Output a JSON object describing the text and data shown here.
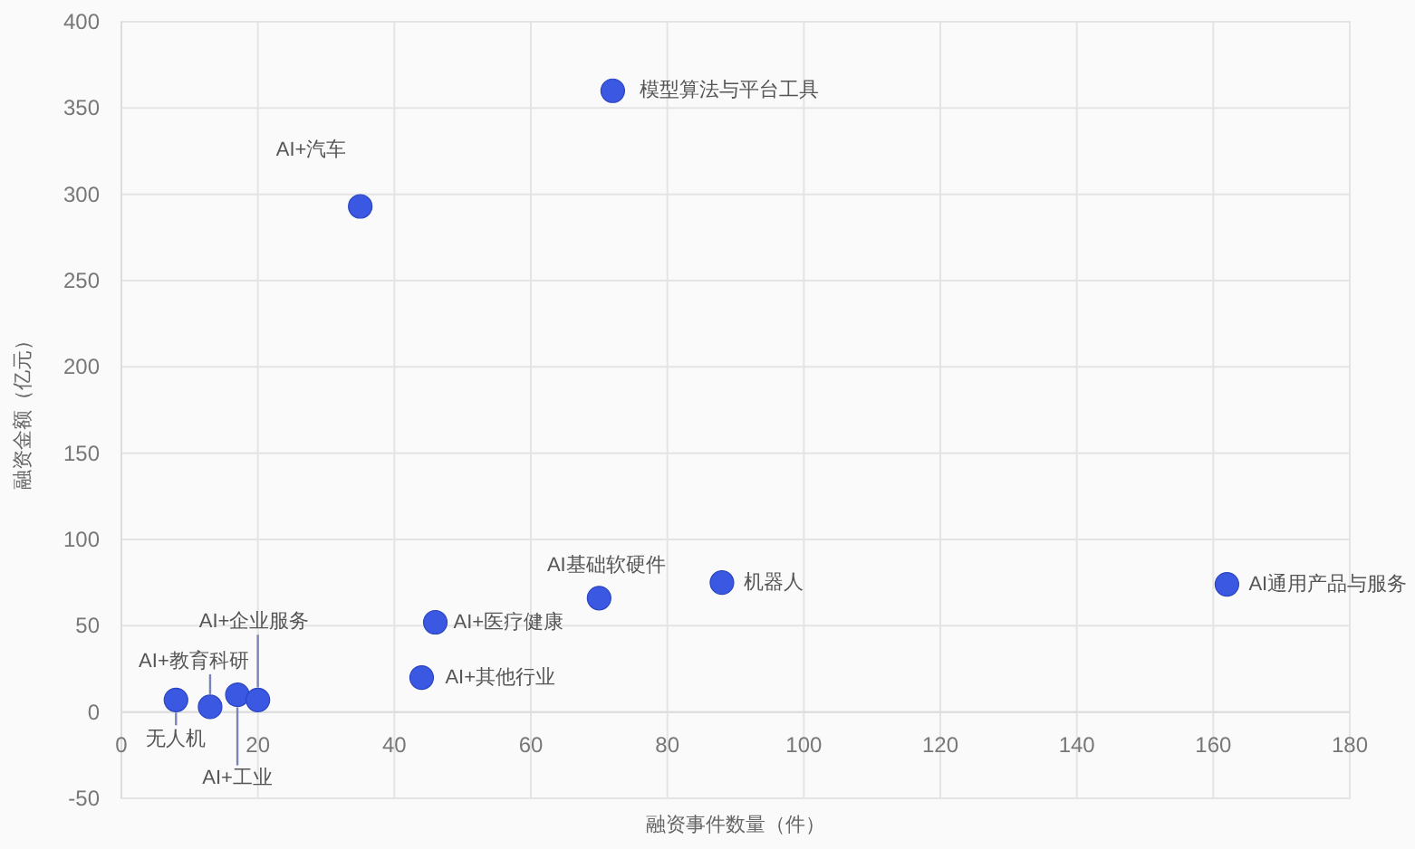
{
  "chart_data": {
    "type": "scatter",
    "xlabel": "融资事件数量（件）",
    "ylabel": "融资金额（亿元）",
    "x": [
      72,
      35,
      70,
      88,
      162,
      46,
      44,
      8,
      13,
      17,
      20
    ],
    "values": [
      360,
      293,
      66,
      75,
      74,
      52,
      20,
      7,
      3,
      10,
      7
    ],
    "color": "#3a58e2",
    "marker": "circle",
    "grid": true,
    "xlim": [
      0,
      180
    ],
    "xticks": [
      0,
      20,
      40,
      60,
      80,
      100,
      120,
      140,
      160,
      180
    ],
    "ylim": [
      -50,
      400
    ],
    "yticks": [
      -50,
      0,
      50,
      100,
      150,
      200,
      250,
      300,
      350,
      400
    ],
    "annotations": [
      {
        "text": "模型算法与平台工具",
        "x": 72,
        "y": 360
      },
      {
        "text": "AI+汽车",
        "x": 35,
        "y": 293
      },
      {
        "text": "AI基础软硬件",
        "x": 70,
        "y": 66
      },
      {
        "text": "机器人",
        "x": 88,
        "y": 75
      },
      {
        "text": "AI通用产品与服务",
        "x": 162,
        "y": 74
      },
      {
        "text": "AI+医疗健康",
        "x": 46,
        "y": 52
      },
      {
        "text": "AI+其他行业",
        "x": 44,
        "y": 20
      },
      {
        "text": "无人机",
        "x": 8,
        "y": 7
      },
      {
        "text": "AI+教育科研",
        "x": 13,
        "y": 3
      },
      {
        "text": "AI+工业",
        "x": 17,
        "y": 10
      },
      {
        "text": "AI+企业服务",
        "x": 20,
        "y": 7
      }
    ]
  }
}
